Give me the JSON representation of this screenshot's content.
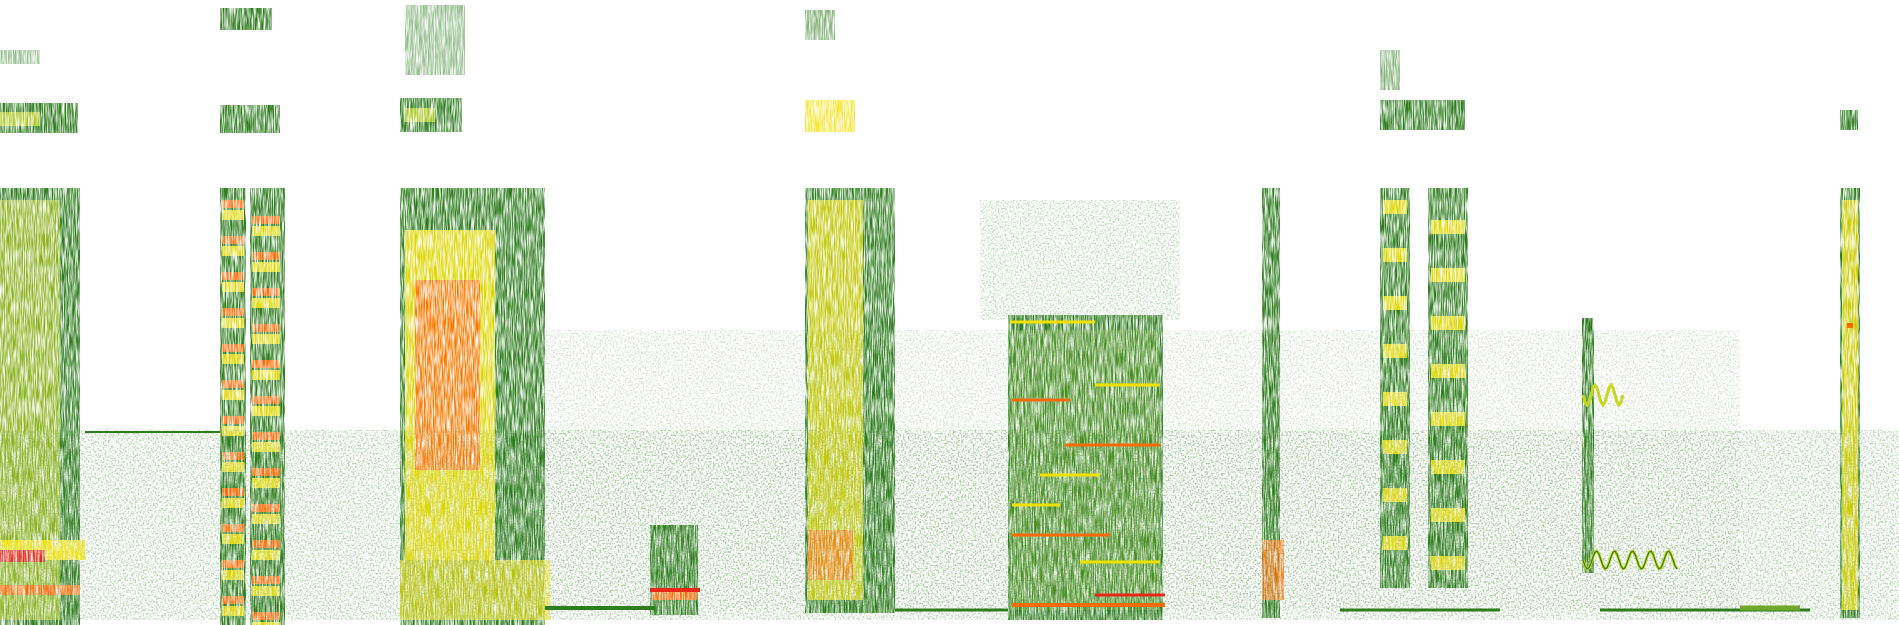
{
  "image": {
    "kind": "spectrogram",
    "background_color": "#ffffff",
    "palette": {
      "low": "#2e7d1f",
      "mid_low": "#6fa82a",
      "mid": "#c8d61e",
      "high": "#f2e000",
      "peak": "#ff6a00",
      "max": "#e8261a"
    }
  }
}
